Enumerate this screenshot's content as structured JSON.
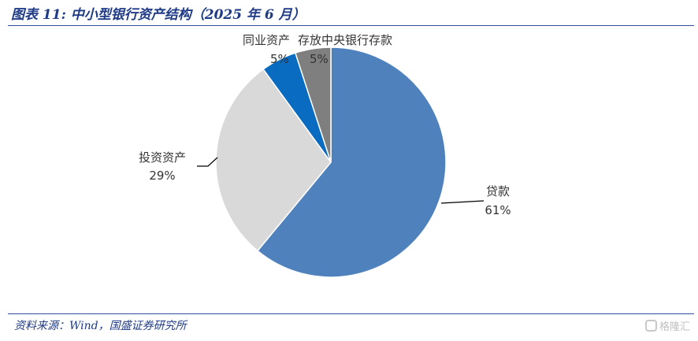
{
  "header": {
    "title": "图表 11:  中小型银行资产结构（2025 年 6 月）"
  },
  "footer": {
    "source": "资料来源：Wind，国盛证券研究所",
    "watermark": "格隆汇"
  },
  "chart_data": {
    "type": "pie",
    "title": "图表 11:  中小型银行资产结构（2025 年 6 月）",
    "slices": [
      {
        "label": "贷款",
        "value": 61,
        "value_label": "61%",
        "color": "#4f81bd"
      },
      {
        "label": "投资资产",
        "value": 29,
        "value_label": "29%",
        "color": "#d9d9d9"
      },
      {
        "label": "存放中央银行存款",
        "value": 5,
        "value_label": "5%",
        "color": "#0a6cc0"
      },
      {
        "label": "同业资产",
        "value": 5,
        "value_label": "5%",
        "color": "#7f7f7f"
      }
    ],
    "start": "12 o'clock",
    "direction": "clockwise",
    "legend": "none"
  }
}
